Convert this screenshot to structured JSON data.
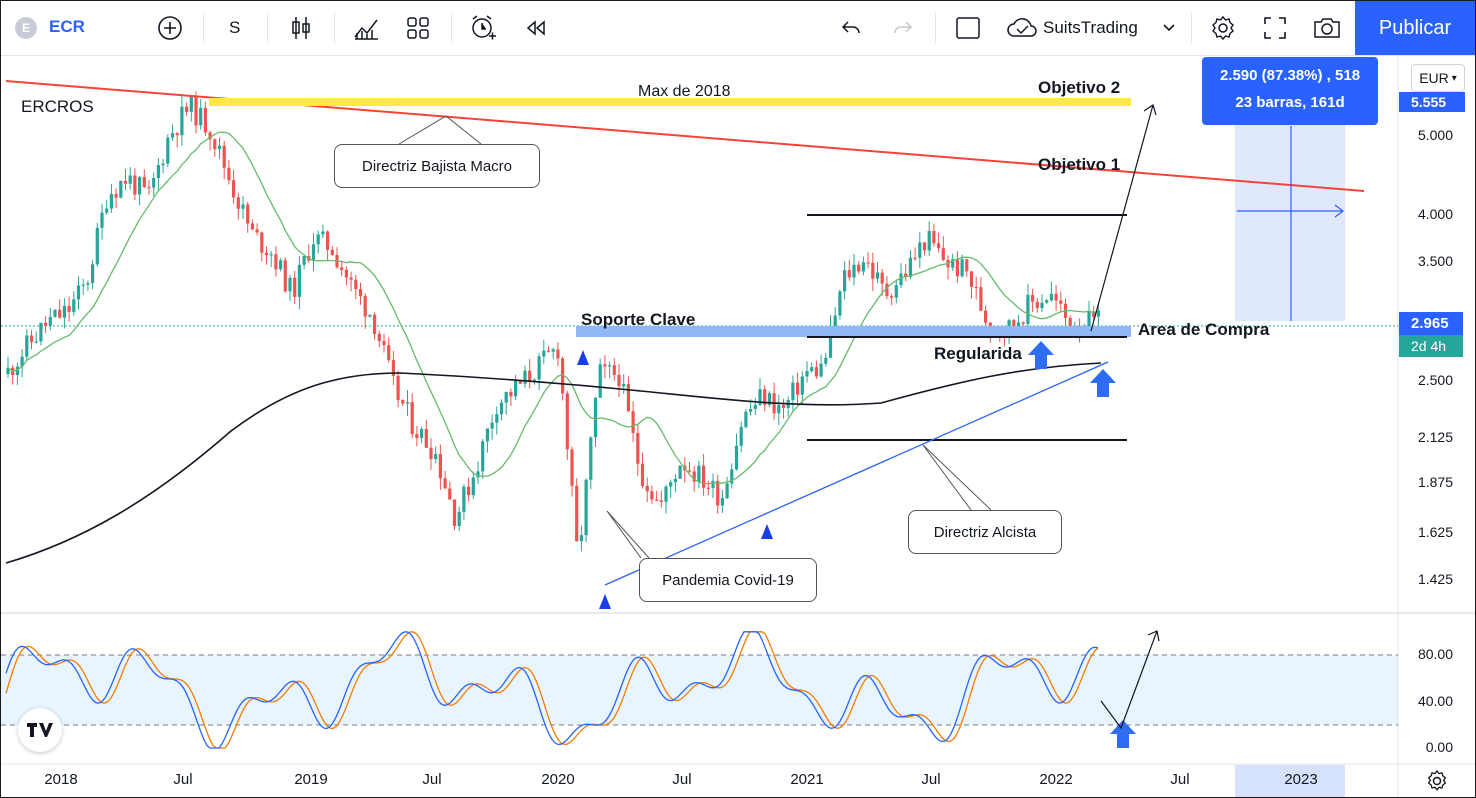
{
  "toolbar": {
    "symbol_logo": "E",
    "symbol": "ECR",
    "interval": "S",
    "broker": "SuitsTrading",
    "publish_label": "Publicar",
    "icons": [
      "add-symbol-icon",
      "candles-icon",
      "indicators-icon",
      "layouts-icon",
      "alert-icon",
      "replay-icon",
      "undo-icon",
      "redo-icon",
      "rectangle-icon",
      "cloud-icon",
      "chevron-down-icon",
      "settings-icon",
      "fullscreen-icon",
      "camera-icon"
    ]
  },
  "price_axis": {
    "currency": "EUR",
    "ticks": [
      "5.000",
      "4.000",
      "3.500",
      "2.500",
      "2.125",
      "1.875",
      "1.625",
      "1.425"
    ],
    "label_top": "5.555",
    "label_current": "2.965",
    "label_countdown": "2d 4h",
    "colors": {
      "label_top": "#2962ff",
      "label_current": "#2962ff",
      "label_countdown": "#26a69a"
    }
  },
  "oscillator_axis": {
    "ticks": [
      "80.00",
      "40.00",
      "0.00"
    ]
  },
  "time_axis": {
    "labels": [
      "2018",
      "Jul",
      "2019",
      "Jul",
      "2020",
      "Jul",
      "2021",
      "Jul",
      "2022",
      "Jul",
      "2023"
    ]
  },
  "measure_tooltip": {
    "line1": "2.590 (87.38%) , 518",
    "line2": "23 barras, 161d"
  },
  "annotations": {
    "ticker_label": "ERCROS",
    "max_2018": "Max de 2018",
    "objetivo_2": "Objetivo 2",
    "objetivo_1": "Objetivo 1",
    "directriz_bajista": "Directriz Bajista Macro",
    "soporte_clave": "Soporte Clave",
    "area_compra": "Area de Compra",
    "regularidad": "Regularida",
    "pandemia": "Pandemia Covid-19",
    "directriz_alcista": "Directriz Alcista"
  },
  "colors": {
    "up": "#26a69a",
    "down": "#ef5350",
    "ma_short": "#66bb6a",
    "ma_long": "#131722",
    "trend_down": "#f44336",
    "max_line": "#ffeb3b",
    "support_zone": "#90b8f8",
    "trend_up": "#2962ff",
    "stoch_k": "#2962ff",
    "stoch_d": "#f57c00",
    "accent": "#2962ff"
  },
  "chart_data": {
    "type": "candlestick",
    "title": "ECR",
    "ylog": true,
    "ylim": [
      1.3,
      6.0
    ],
    "x_range": [
      "2017-11",
      "2023-03"
    ],
    "close_path": [
      {
        "x": "2017-11",
        "y": 2.55
      },
      {
        "x": "2017-12",
        "y": 2.75
      },
      {
        "x": "2018-01",
        "y": 2.95
      },
      {
        "x": "2018-02",
        "y": 3.05
      },
      {
        "x": "2018-03",
        "y": 3.3
      },
      {
        "x": "2018-04",
        "y": 4.25
      },
      {
        "x": "2018-05",
        "y": 4.45
      },
      {
        "x": "2018-06",
        "y": 4.2
      },
      {
        "x": "2018-07",
        "y": 5.0
      },
      {
        "x": "2018-08",
        "y": 5.45
      },
      {
        "x": "2018-09",
        "y": 5.1
      },
      {
        "x": "2018-10",
        "y": 4.4
      },
      {
        "x": "2018-11",
        "y": 3.8
      },
      {
        "x": "2018-12",
        "y": 3.6
      },
      {
        "x": "2019-01",
        "y": 3.2
      },
      {
        "x": "2019-02",
        "y": 3.75
      },
      {
        "x": "2019-03",
        "y": 3.65
      },
      {
        "x": "2019-04",
        "y": 3.25
      },
      {
        "x": "2019-05",
        "y": 3.0
      },
      {
        "x": "2019-06",
        "y": 2.45
      },
      {
        "x": "2019-07",
        "y": 2.2
      },
      {
        "x": "2019-08",
        "y": 2.05
      },
      {
        "x": "2019-09",
        "y": 1.7
      },
      {
        "x": "2019-10",
        "y": 1.95
      },
      {
        "x": "2019-11",
        "y": 2.35
      },
      {
        "x": "2019-12",
        "y": 2.45
      },
      {
        "x": "2020-01",
        "y": 2.6
      },
      {
        "x": "2020-02",
        "y": 2.75
      },
      {
        "x": "2020-03",
        "y": 1.5
      },
      {
        "x": "2020-04",
        "y": 2.55
      },
      {
        "x": "2020-05",
        "y": 2.55
      },
      {
        "x": "2020-06",
        "y": 1.95
      },
      {
        "x": "2020-07",
        "y": 1.75
      },
      {
        "x": "2020-08",
        "y": 2.0
      },
      {
        "x": "2020-09",
        "y": 1.9
      },
      {
        "x": "2020-10",
        "y": 1.8
      },
      {
        "x": "2020-11",
        "y": 2.25
      },
      {
        "x": "2020-12",
        "y": 2.4
      },
      {
        "x": "2021-01",
        "y": 2.3
      },
      {
        "x": "2021-02",
        "y": 2.55
      },
      {
        "x": "2021-03",
        "y": 2.6
      },
      {
        "x": "2021-04",
        "y": 3.35
      },
      {
        "x": "2021-05",
        "y": 3.55
      },
      {
        "x": "2021-06",
        "y": 3.2
      },
      {
        "x": "2021-07",
        "y": 3.4
      },
      {
        "x": "2021-08",
        "y": 3.75
      },
      {
        "x": "2021-09",
        "y": 3.5
      },
      {
        "x": "2021-10",
        "y": 3.4
      },
      {
        "x": "2021-11",
        "y": 2.95
      },
      {
        "x": "2021-12",
        "y": 2.9
      },
      {
        "x": "2022-01",
        "y": 3.1
      },
      {
        "x": "2022-02",
        "y": 3.2
      },
      {
        "x": "2022-03",
        "y": 2.95
      }
    ],
    "levels": [
      {
        "name": "Max de 2018",
        "y": 5.555
      },
      {
        "name": "Soporte Clave",
        "y": 2.85
      },
      {
        "name": "range_top",
        "y": 4.0
      },
      {
        "name": "range_mid",
        "y": 2.85
      },
      {
        "name": "range_bottom",
        "y": 2.14
      }
    ],
    "indicator": {
      "type": "stochastic",
      "ylim": [
        0,
        100
      ],
      "levels": [
        80,
        20
      ]
    }
  }
}
